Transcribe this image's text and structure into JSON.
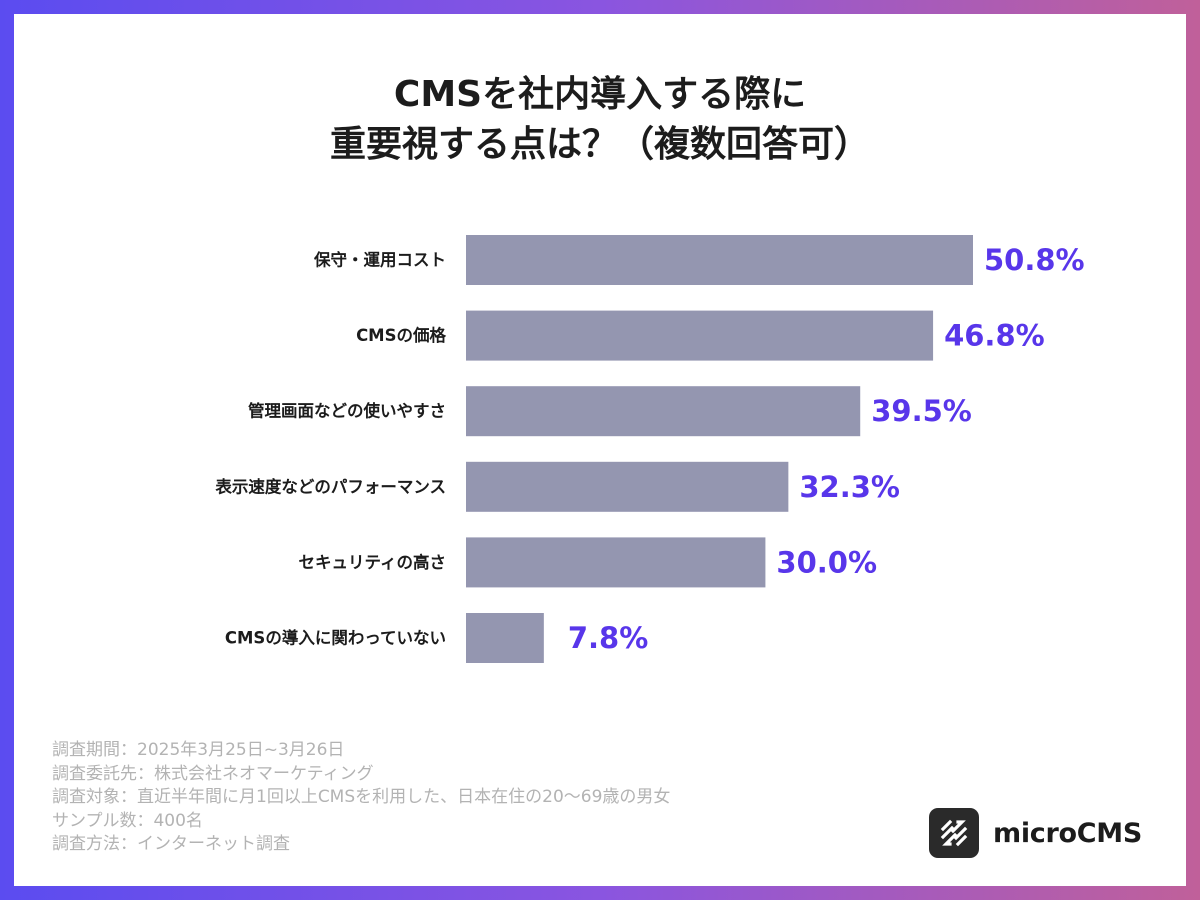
{
  "chart_data": {
    "type": "bar",
    "orientation": "horizontal",
    "title_lines": [
      "CMSを社内導入する際に",
      "重要視する点は？（複数回答可）"
    ],
    "categories": [
      "保守・運用コスト",
      "CMSの価格",
      "管理画面などの使いやすさ",
      "表示速度などのパフォーマンス",
      "セキュリティの高さ",
      "CMSの導入に関わっていない"
    ],
    "values": [
      50.8,
      46.8,
      39.5,
      32.3,
      30.0,
      7.8
    ],
    "value_labels": [
      "50.8%",
      "46.8%",
      "39.5%",
      "32.3%",
      "30.0%",
      "7.8%"
    ],
    "unit": "%",
    "xlim": [
      0,
      100
    ],
    "grid": false,
    "legend": "none"
  },
  "colors": {
    "bar": "#9496b0",
    "value_label": "#5836ea",
    "category_label": "#1c1c1c",
    "notes": "#b3b3b3"
  },
  "notes": [
    "調査期間：2025年3月25日~3月26日",
    "調査委託先：株式会社ネオマーケティング",
    "調査対象：直近半年間に月1回以上CMSを利用した、日本在住の20〜69歳の男女",
    "サンプル数：400名",
    "調査方法：インターネット調査"
  ],
  "brand": {
    "name": "microCMS",
    "icon": "microcms-logo-icon"
  }
}
